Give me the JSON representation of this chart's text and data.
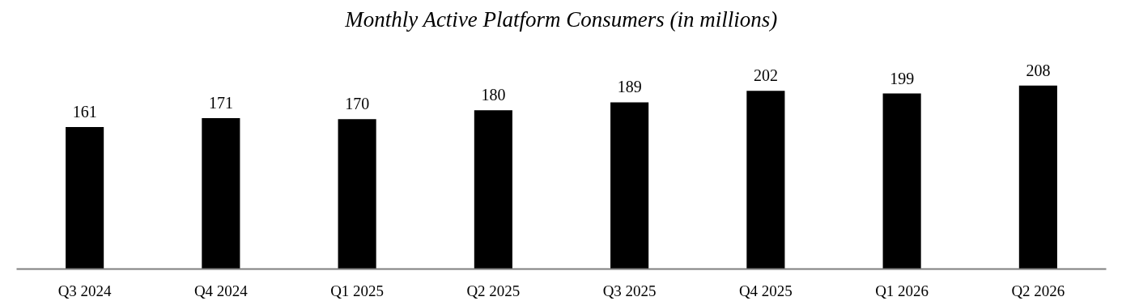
{
  "chart_data": {
    "type": "bar",
    "title": "Monthly Active Platform Consumers (in millions)",
    "categories": [
      "Q3 2024",
      "Q4 2024",
      "Q1 2025",
      "Q2 2025",
      "Q3 2025",
      "Q4 2025",
      "Q1 2026",
      "Q2 2026"
    ],
    "values": [
      161,
      171,
      170,
      180,
      189,
      202,
      199,
      208
    ],
    "color": "#000000",
    "data_labels": true,
    "grid": false
  }
}
